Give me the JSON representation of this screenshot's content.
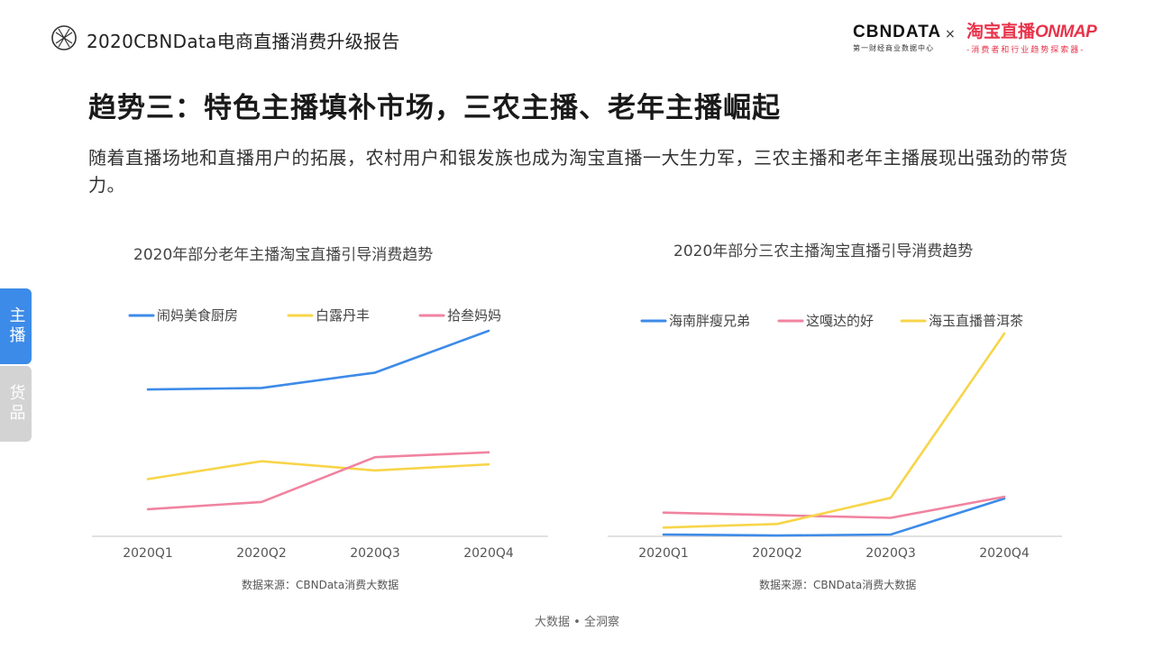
{
  "header": {
    "report_title": "2020CBNData电商直播消费升级报告",
    "brand_left_name": "CBNDATA",
    "brand_left_sub": "第一财经商业数据中心",
    "brand_x": "×",
    "brand_right_name_cn": "淘宝直播",
    "brand_right_name_en": "ONMAP",
    "brand_right_sub": "-消费者和行业趋势探索器-"
  },
  "slide": {
    "title": "趋势三：特色主播填补市场，三农主播、老年主播崛起",
    "description": "随着直播场地和直播用户的拓展，农村用户和银发族也成为淘宝直播一大生力军，三农主播和老年主播展现出强劲的带货力。"
  },
  "side_nav": {
    "tab1": "主播",
    "tab2": "货品"
  },
  "footer": "大数据 • 全洞察",
  "chart_data": [
    {
      "type": "line",
      "title": "2020年部分老年主播淘宝直播引导消费趋势",
      "categories": [
        "2020Q1",
        "2020Q2",
        "2020Q3",
        "2020Q4"
      ],
      "ylim": [
        0,
        100
      ],
      "grid": false,
      "legend": "top",
      "series": [
        {
          "name": "闹妈美食厨房",
          "color": "#3d8be8",
          "values": [
            70,
            70.8,
            78.6,
            100
          ]
        },
        {
          "name": "白露丹丰",
          "color": "#f7d54a",
          "values": [
            24.2,
            33.3,
            28.6,
            31.7
          ]
        },
        {
          "name": "拾叁妈妈",
          "color": "#f083a0",
          "values": [
            8.8,
            12.5,
            35.4,
            37.9
          ]
        }
      ],
      "source": "数据来源：CBNData消费大数据"
    },
    {
      "type": "line",
      "title": "2020年部分三农主播淘宝直播引导消费趋势",
      "categories": [
        "2020Q1",
        "2020Q2",
        "2020Q3",
        "2020Q4"
      ],
      "ylim": [
        0,
        100
      ],
      "grid": false,
      "legend": "top",
      "series": [
        {
          "name": "海南胖瘦兄弟",
          "color": "#3d8be8",
          "values": [
            0.9,
            0.4,
            0.9,
            18.6
          ]
        },
        {
          "name": "这嘎达的好",
          "color": "#f083a0",
          "values": [
            11.7,
            10.4,
            9.1,
            19.5
          ]
        },
        {
          "name": "海玉直播普洱茶",
          "color": "#f7d54a",
          "values": [
            4.3,
            6.1,
            19.0,
            100
          ]
        }
      ],
      "source": "数据来源：CBNData消费大数据"
    }
  ]
}
